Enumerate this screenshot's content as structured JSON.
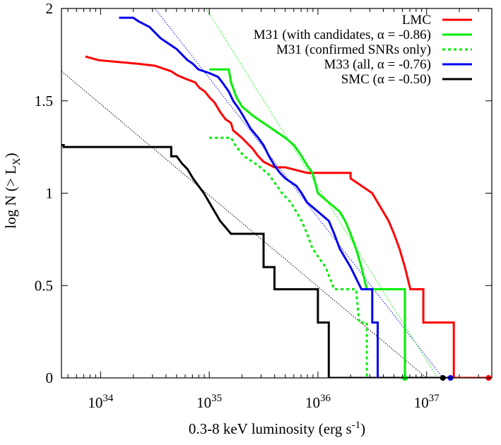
{
  "chart_data": {
    "type": "line",
    "title": "",
    "xlabel": "0.3-8 keV luminosity (erg s",
    "xlabel_sup": "-1",
    "xlabel_close": ")",
    "ylabel": "log N (> L",
    "ylabel_sub": "X",
    "ylabel_close": ")",
    "xscale": "log",
    "xlim_log10": [
      33.64,
      37.6
    ],
    "ylim": [
      0,
      2
    ],
    "yticks": [
      {
        "value": 0,
        "label": "0"
      },
      {
        "value": 0.5,
        "label": "0.5"
      },
      {
        "value": 1,
        "label": "1"
      },
      {
        "value": 1.5,
        "label": "1.5"
      },
      {
        "value": 2,
        "label": "2"
      }
    ],
    "xticks": [
      {
        "value": 34,
        "base": "10",
        "exp": "34"
      },
      {
        "value": 35,
        "base": "10",
        "exp": "35"
      },
      {
        "value": 36,
        "base": "10",
        "exp": "36"
      },
      {
        "value": 37,
        "base": "10",
        "exp": "37"
      }
    ],
    "legend_position": "top-right",
    "series": [
      {
        "name": "LMC",
        "color": "#ff0000",
        "style": "solid",
        "points": [
          [
            33.86,
            1.74
          ],
          [
            33.98,
            1.72
          ],
          [
            34.35,
            1.7
          ],
          [
            34.5,
            1.69
          ],
          [
            34.6,
            1.67
          ],
          [
            34.65,
            1.66
          ],
          [
            34.7,
            1.64
          ],
          [
            34.78,
            1.62
          ],
          [
            34.87,
            1.6
          ],
          [
            34.91,
            1.57
          ],
          [
            34.96,
            1.55
          ],
          [
            35.0,
            1.52
          ],
          [
            35.05,
            1.49
          ],
          [
            35.1,
            1.44
          ],
          [
            35.15,
            1.4
          ],
          [
            35.2,
            1.38
          ],
          [
            35.22,
            1.34
          ],
          [
            35.26,
            1.32
          ],
          [
            35.3,
            1.3
          ],
          [
            35.35,
            1.27
          ],
          [
            35.4,
            1.24
          ],
          [
            35.45,
            1.2
          ],
          [
            35.5,
            1.17
          ],
          [
            35.6,
            1.14
          ],
          [
            35.7,
            1.14
          ],
          [
            35.9,
            1.11
          ],
          [
            36.3,
            1.11
          ],
          [
            36.3,
            1.08
          ],
          [
            36.4,
            1.04
          ],
          [
            36.5,
            1.0
          ],
          [
            36.55,
            0.95
          ],
          [
            36.6,
            0.9
          ],
          [
            36.65,
            0.85
          ],
          [
            36.7,
            0.78
          ],
          [
            36.75,
            0.7
          ],
          [
            36.8,
            0.6
          ],
          [
            36.85,
            0.48
          ],
          [
            36.97,
            0.48
          ],
          [
            36.97,
            0.3
          ],
          [
            37.25,
            0.3
          ],
          [
            37.25,
            0.0
          ],
          [
            37.58,
            0.0
          ]
        ],
        "end_marker": [
          37.57,
          0
        ]
      },
      {
        "name": "M31 (with candidates, α = -0.86)",
        "color": "#00ee00",
        "style": "solid",
        "points": [
          [
            35.0,
            1.67
          ],
          [
            35.18,
            1.67
          ],
          [
            35.2,
            1.6
          ],
          [
            35.25,
            1.52
          ],
          [
            35.3,
            1.47
          ],
          [
            35.4,
            1.42
          ],
          [
            35.5,
            1.38
          ],
          [
            35.6,
            1.34
          ],
          [
            35.7,
            1.3
          ],
          [
            35.78,
            1.26
          ],
          [
            35.85,
            1.2
          ],
          [
            35.9,
            1.15
          ],
          [
            35.95,
            1.11
          ],
          [
            36.0,
            1.0
          ],
          [
            36.1,
            0.95
          ],
          [
            36.2,
            0.9
          ],
          [
            36.25,
            0.85
          ],
          [
            36.3,
            0.78
          ],
          [
            36.35,
            0.7
          ],
          [
            36.4,
            0.6
          ],
          [
            36.45,
            0.48
          ],
          [
            36.8,
            0.48
          ],
          [
            36.8,
            0.0
          ]
        ],
        "end_marker": [
          36.8,
          0
        ]
      },
      {
        "name": "M31 (confirmed SNRs only)",
        "color": "#00ee00",
        "style": "dotted",
        "points": [
          [
            35.0,
            1.3
          ],
          [
            35.2,
            1.3
          ],
          [
            35.25,
            1.25
          ],
          [
            35.32,
            1.2
          ],
          [
            35.45,
            1.15
          ],
          [
            35.55,
            1.1
          ],
          [
            35.67,
            1.0
          ],
          [
            35.75,
            0.95
          ],
          [
            35.85,
            0.85
          ],
          [
            35.9,
            0.78
          ],
          [
            35.95,
            0.7
          ],
          [
            36.07,
            0.6
          ],
          [
            36.15,
            0.48
          ],
          [
            36.35,
            0.48
          ],
          [
            36.38,
            0.3
          ],
          [
            36.45,
            0.3
          ],
          [
            36.45,
            0.0
          ]
        ]
      },
      {
        "name": "M33 (all, α = -0.76)",
        "color": "#0000ee",
        "style": "solid",
        "points": [
          [
            34.17,
            1.95
          ],
          [
            34.3,
            1.95
          ],
          [
            34.35,
            1.93
          ],
          [
            34.45,
            1.9
          ],
          [
            34.5,
            1.87
          ],
          [
            34.55,
            1.84
          ],
          [
            34.6,
            1.82
          ],
          [
            34.65,
            1.8
          ],
          [
            34.7,
            1.78
          ],
          [
            34.75,
            1.75
          ],
          [
            34.8,
            1.72
          ],
          [
            34.85,
            1.7
          ],
          [
            34.9,
            1.67
          ],
          [
            35.0,
            1.65
          ],
          [
            35.08,
            1.63
          ],
          [
            35.12,
            1.6
          ],
          [
            35.18,
            1.55
          ],
          [
            35.22,
            1.5
          ],
          [
            35.28,
            1.45
          ],
          [
            35.33,
            1.4
          ],
          [
            35.38,
            1.35
          ],
          [
            35.45,
            1.3
          ],
          [
            35.5,
            1.26
          ],
          [
            35.55,
            1.2
          ],
          [
            35.6,
            1.15
          ],
          [
            35.65,
            1.11
          ],
          [
            35.7,
            1.08
          ],
          [
            35.8,
            1.04
          ],
          [
            35.85,
            1.0
          ],
          [
            35.9,
            0.95
          ],
          [
            36.0,
            0.9
          ],
          [
            36.1,
            0.85
          ],
          [
            36.15,
            0.78
          ],
          [
            36.2,
            0.7
          ],
          [
            36.3,
            0.6
          ],
          [
            36.4,
            0.48
          ],
          [
            36.5,
            0.48
          ],
          [
            36.5,
            0.3
          ],
          [
            36.55,
            0.3
          ],
          [
            36.55,
            0.0
          ]
        ],
        "end_marker": [
          37.22,
          0
        ]
      },
      {
        "name": "SMC (α = -0.50)",
        "color": "#000000",
        "style": "solid",
        "points": [
          [
            33.64,
            1.26
          ],
          [
            33.66,
            1.26
          ],
          [
            33.66,
            1.25
          ],
          [
            34.65,
            1.25
          ],
          [
            34.65,
            1.2
          ],
          [
            34.7,
            1.2
          ],
          [
            34.75,
            1.16
          ],
          [
            34.8,
            1.13
          ],
          [
            34.85,
            1.08
          ],
          [
            34.9,
            1.04
          ],
          [
            34.95,
            1.0
          ],
          [
            35.0,
            0.95
          ],
          [
            35.05,
            0.9
          ],
          [
            35.1,
            0.85
          ],
          [
            35.2,
            0.78
          ],
          [
            35.5,
            0.78
          ],
          [
            35.5,
            0.6
          ],
          [
            35.6,
            0.6
          ],
          [
            35.6,
            0.48
          ],
          [
            36.0,
            0.48
          ],
          [
            36.0,
            0.3
          ],
          [
            36.1,
            0.3
          ],
          [
            36.1,
            0.0
          ],
          [
            37.2,
            0.0
          ]
        ],
        "end_marker": [
          37.15,
          0
        ]
      }
    ],
    "fits": [
      {
        "color": "#000000",
        "points": [
          [
            33.64,
            1.66
          ],
          [
            37.0,
            0.0
          ]
        ]
      },
      {
        "color": "#0000ee",
        "points": [
          [
            34.5,
            2.0
          ],
          [
            37.15,
            0.0
          ]
        ]
      },
      {
        "color": "#00ee00",
        "points": [
          [
            34.97,
            2.0
          ],
          [
            37.1,
            0.0
          ]
        ]
      }
    ]
  }
}
